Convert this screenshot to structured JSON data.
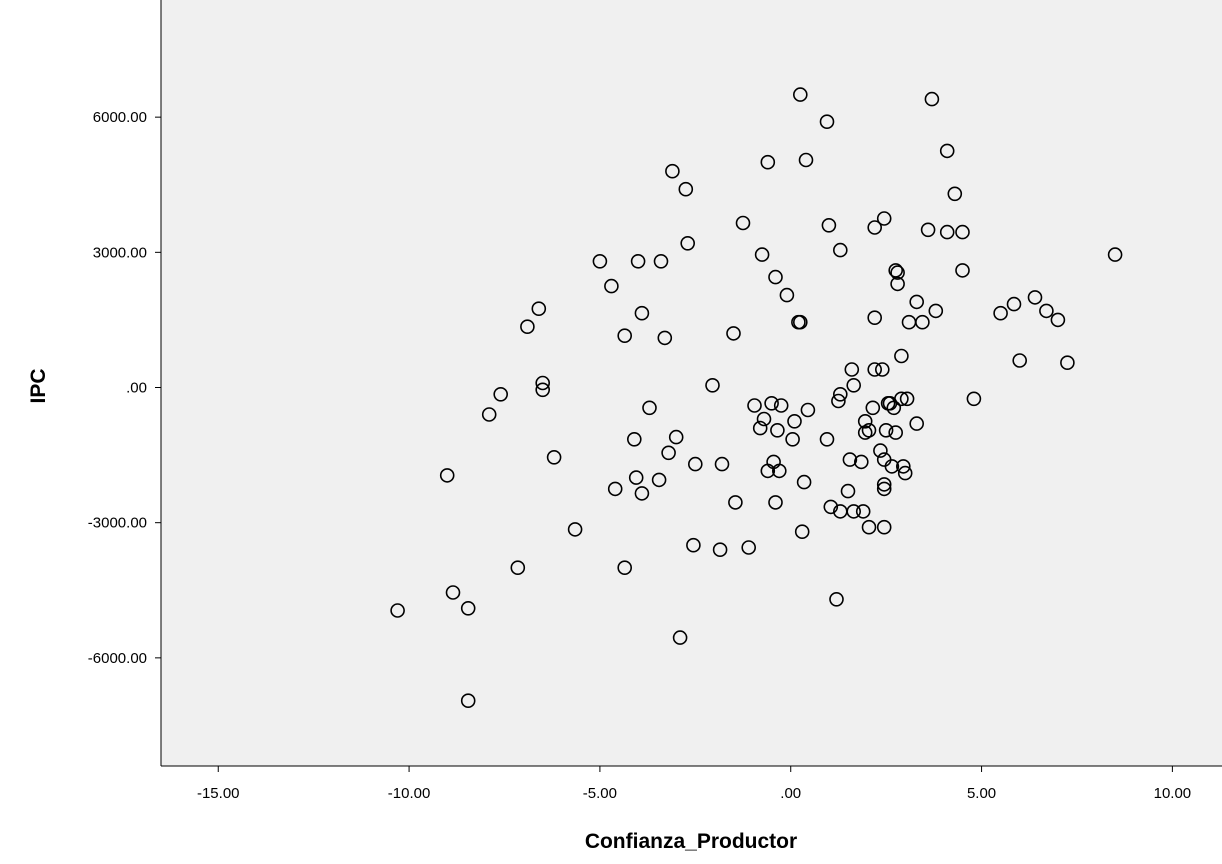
{
  "chart_data": {
    "type": "scatter",
    "title": "",
    "xlabel": "Confianza_Productor",
    "ylabel": "IPC",
    "xlim": [
      -16.5,
      11.3
    ],
    "ylim": [
      -8400,
      8600
    ],
    "xticks": [
      -15,
      -10,
      -5,
      0,
      5,
      10
    ],
    "xtick_labels": [
      "-15.00",
      "-10.00",
      "-5.00",
      ".00",
      "5.00",
      "10.00"
    ],
    "yticks": [
      -6000,
      -3000,
      0,
      3000,
      6000
    ],
    "ytick_labels": [
      "-6000.00",
      "-3000.00",
      ".00",
      "3000.00",
      "6000.00"
    ],
    "grid": false,
    "legend": "none",
    "colors": {
      "plot_bg": "#f0f0f0",
      "marker_stroke": "#000000",
      "page_bg": "#ffffff"
    },
    "points": [
      [
        0.25,
        6500
      ],
      [
        3.7,
        6400
      ],
      [
        0.95,
        5900
      ],
      [
        4.1,
        5250
      ],
      [
        -3.1,
        4800
      ],
      [
        -0.6,
        5000
      ],
      [
        0.4,
        5050
      ],
      [
        -2.75,
        4400
      ],
      [
        4.3,
        4300
      ],
      [
        -1.25,
        3650
      ],
      [
        1.0,
        3600
      ],
      [
        2.2,
        3550
      ],
      [
        2.45,
        3750
      ],
      [
        3.6,
        3500
      ],
      [
        4.1,
        3450
      ],
      [
        4.5,
        3450
      ],
      [
        -2.7,
        3200
      ],
      [
        1.3,
        3050
      ],
      [
        8.5,
        2950
      ],
      [
        -0.75,
        2950
      ],
      [
        -5.0,
        2800
      ],
      [
        -4.0,
        2800
      ],
      [
        -3.4,
        2800
      ],
      [
        -0.4,
        2450
      ],
      [
        2.75,
        2600
      ],
      [
        2.8,
        2550
      ],
      [
        4.5,
        2600
      ],
      [
        -4.7,
        2250
      ],
      [
        2.8,
        2300
      ],
      [
        -0.1,
        2050
      ],
      [
        6.4,
        2000
      ],
      [
        3.3,
        1900
      ],
      [
        5.85,
        1850
      ],
      [
        6.7,
        1700
      ],
      [
        5.5,
        1650
      ],
      [
        7.0,
        1500
      ],
      [
        -3.9,
        1650
      ],
      [
        3.8,
        1700
      ],
      [
        -6.6,
        1750
      ],
      [
        2.2,
        1550
      ],
      [
        3.1,
        1450
      ],
      [
        3.45,
        1450
      ],
      [
        0.25,
        1450
      ],
      [
        0.2,
        1450
      ],
      [
        -6.9,
        1350
      ],
      [
        -4.35,
        1150
      ],
      [
        -3.3,
        1100
      ],
      [
        -1.5,
        1200
      ],
      [
        2.9,
        700
      ],
      [
        6.0,
        600
      ],
      [
        7.25,
        550
      ],
      [
        1.6,
        400
      ],
      [
        2.2,
        400
      ],
      [
        2.4,
        400
      ],
      [
        -6.5,
        100
      ],
      [
        -2.05,
        50
      ],
      [
        1.65,
        50
      ],
      [
        -6.5,
        -50
      ],
      [
        -7.6,
        -150
      ],
      [
        1.3,
        -150
      ],
      [
        1.25,
        -300
      ],
      [
        2.9,
        -250
      ],
      [
        3.05,
        -250
      ],
      [
        4.8,
        -250
      ],
      [
        2.6,
        -350
      ],
      [
        2.55,
        -350
      ],
      [
        -0.5,
        -350
      ],
      [
        -0.25,
        -400
      ],
      [
        -0.95,
        -400
      ],
      [
        2.15,
        -450
      ],
      [
        2.7,
        -450
      ],
      [
        -3.7,
        -450
      ],
      [
        -7.9,
        -600
      ],
      [
        0.45,
        -500
      ],
      [
        0.1,
        -750
      ],
      [
        -0.7,
        -700
      ],
      [
        1.95,
        -750
      ],
      [
        3.3,
        -800
      ],
      [
        -0.8,
        -900
      ],
      [
        -0.35,
        -950
      ],
      [
        2.05,
        -950
      ],
      [
        2.5,
        -950
      ],
      [
        1.95,
        -1000
      ],
      [
        2.75,
        -1000
      ],
      [
        -4.1,
        -1150
      ],
      [
        -3.0,
        -1100
      ],
      [
        0.95,
        -1150
      ],
      [
        0.05,
        -1150
      ],
      [
        -3.2,
        -1450
      ],
      [
        2.35,
        -1400
      ],
      [
        -6.2,
        -1550
      ],
      [
        1.55,
        -1600
      ],
      [
        -0.45,
        -1650
      ],
      [
        2.45,
        -1600
      ],
      [
        1.85,
        -1650
      ],
      [
        -2.5,
        -1700
      ],
      [
        -1.8,
        -1700
      ],
      [
        2.65,
        -1750
      ],
      [
        2.95,
        -1750
      ],
      [
        -0.6,
        -1850
      ],
      [
        -0.3,
        -1850
      ],
      [
        3.0,
        -1900
      ],
      [
        -9.0,
        -1950
      ],
      [
        -4.05,
        -2000
      ],
      [
        -3.45,
        -2050
      ],
      [
        0.35,
        -2100
      ],
      [
        2.45,
        -2150
      ],
      [
        -4.6,
        -2250
      ],
      [
        -3.9,
        -2350
      ],
      [
        2.45,
        -2250
      ],
      [
        1.5,
        -2300
      ],
      [
        -0.4,
        -2550
      ],
      [
        -1.45,
        -2550
      ],
      [
        1.05,
        -2650
      ],
      [
        1.3,
        -2750
      ],
      [
        1.65,
        -2750
      ],
      [
        1.9,
        -2750
      ],
      [
        2.05,
        -3100
      ],
      [
        2.45,
        -3100
      ],
      [
        -5.65,
        -3150
      ],
      [
        0.3,
        -3200
      ],
      [
        -2.55,
        -3500
      ],
      [
        -1.1,
        -3550
      ],
      [
        -1.85,
        -3600
      ],
      [
        -7.15,
        -4000
      ],
      [
        -4.35,
        -4000
      ],
      [
        -8.85,
        -4550
      ],
      [
        1.2,
        -4700
      ],
      [
        -10.3,
        -4950
      ],
      [
        -8.45,
        -4900
      ],
      [
        -2.9,
        -5550
      ],
      [
        -8.45,
        -6950
      ]
    ]
  }
}
